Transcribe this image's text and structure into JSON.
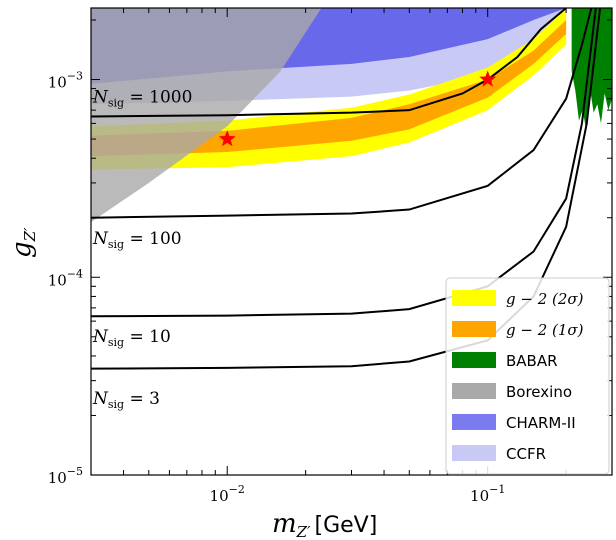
{
  "chart_data": {
    "type": "line",
    "xlabel_symbol": "m",
    "xlabel_sub": "Z′",
    "xlabel_unit": "[GeV]",
    "ylabel_symbol": "g",
    "ylabel_sub": "Z′",
    "x_scale": "log",
    "y_scale": "log",
    "xlim": [
      0.003,
      0.3
    ],
    "ylim": [
      1e-05,
      0.0023
    ],
    "x_ticks": [
      {
        "value": 0.01,
        "base": "10",
        "exp": "−2"
      },
      {
        "value": 0.1,
        "base": "10",
        "exp": "−1"
      }
    ],
    "y_ticks": [
      {
        "value": 1e-05,
        "base": "10",
        "exp": "−5"
      },
      {
        "value": 0.0001,
        "base": "10",
        "exp": "−4"
      },
      {
        "value": 0.001,
        "base": "10",
        "exp": "−3"
      }
    ],
    "contours": [
      {
        "label_main": "N",
        "label_sub": "sig",
        "label_eq": " = 1000",
        "label_at": [
          0.003,
          0.00082
        ],
        "x": [
          0.003,
          0.01,
          0.03,
          0.05,
          0.08,
          0.1,
          0.13,
          0.16,
          0.2
        ],
        "y": [
          0.00065,
          0.00066,
          0.00068,
          0.0007,
          0.00085,
          0.001,
          0.0013,
          0.0018,
          0.0023
        ]
      },
      {
        "label_main": "N",
        "label_sub": "sig",
        "label_eq": " = 100",
        "label_at": [
          0.003,
          0.000158
        ],
        "x": [
          0.003,
          0.01,
          0.03,
          0.05,
          0.1,
          0.15,
          0.2,
          0.23,
          0.25
        ],
        "y": [
          0.0002,
          0.000205,
          0.00021,
          0.00022,
          0.00029,
          0.00044,
          0.0008,
          0.0015,
          0.0023
        ]
      },
      {
        "label_main": "N",
        "label_sub": "sig",
        "label_eq": " = 10",
        "label_at": [
          0.003,
          5.05e-05
        ],
        "x": [
          0.003,
          0.01,
          0.03,
          0.05,
          0.1,
          0.15,
          0.2,
          0.23,
          0.26
        ],
        "y": [
          6.35e-05,
          6.4e-05,
          6.55e-05,
          6.9e-05,
          9e-05,
          0.000135,
          0.00025,
          0.0006,
          0.0023
        ]
      },
      {
        "label_main": "N",
        "label_sub": "sig",
        "label_eq": " = 3",
        "label_at": [
          0.003,
          2.45e-05
        ],
        "x": [
          0.003,
          0.01,
          0.03,
          0.05,
          0.1,
          0.15,
          0.2,
          0.24,
          0.27
        ],
        "y": [
          3.45e-05,
          3.48e-05,
          3.55e-05,
          3.75e-05,
          4.8e-05,
          8e-05,
          0.00018,
          0.0006,
          0.0023
        ]
      }
    ],
    "bands": {
      "g2_2sigma": {
        "x": [
          0.003,
          0.01,
          0.03,
          0.05,
          0.1,
          0.15,
          0.2
        ],
        "upper": [
          0.00058,
          0.00062,
          0.00072,
          0.00084,
          0.00115,
          0.0016,
          0.0023
        ],
        "lower": [
          0.00035,
          0.00036,
          0.00041,
          0.00048,
          0.0007,
          0.00105,
          0.0015
        ]
      },
      "g2_1sigma": {
        "x": [
          0.003,
          0.01,
          0.03,
          0.05,
          0.1,
          0.15,
          0.2
        ],
        "upper": [
          0.00052,
          0.00055,
          0.00064,
          0.00075,
          0.001,
          0.0014,
          0.002
        ],
        "lower": [
          0.00041,
          0.00043,
          0.00049,
          0.00056,
          0.00081,
          0.0012,
          0.0017
        ]
      },
      "charm": {
        "x": [
          0.003,
          0.01,
          0.03,
          0.05,
          0.1,
          0.15,
          0.2,
          0.3
        ],
        "lower": [
          0.00095,
          0.0011,
          0.0012,
          0.0013,
          0.0016,
          0.002,
          0.0023,
          0.0023
        ]
      },
      "ccfr": {
        "x": [
          0.003,
          0.01,
          0.03,
          0.05,
          0.1,
          0.15,
          0.2
        ],
        "lower": [
          0.00075,
          0.00078,
          0.00082,
          0.00088,
          0.00105,
          0.0014,
          0.002
        ]
      },
      "borexino": {
        "x": [
          0.003,
          0.005,
          0.01,
          0.016,
          0.023
        ],
        "diag": [
          0.00019,
          0.0003,
          0.00058,
          0.0011,
          0.0023
        ]
      },
      "babar": {
        "x_range": [
          0.21,
          0.3
        ],
        "lower": [
          0.0011,
          0.00088,
          0.00062,
          0.0007,
          0.00055,
          0.0009,
          0.00068,
          0.00075,
          0.0006,
          0.00085,
          0.0007,
          0.0008
        ]
      }
    },
    "benchmarks": [
      {
        "x": 0.01,
        "y": 0.0005
      },
      {
        "x": 0.1,
        "y": 0.001
      }
    ],
    "legend": {
      "placement": "lower-right",
      "entries": [
        {
          "kind": "math",
          "text": "g − 2 (2σ)",
          "color": "#ffff00"
        },
        {
          "kind": "math",
          "text": "g − 2 (1σ)",
          "color": "#ffa500"
        },
        {
          "kind": "text",
          "text": "BABAR",
          "color": "#008000"
        },
        {
          "kind": "text",
          "text": "Borexino",
          "color": "#a9a9a9"
        },
        {
          "kind": "text",
          "text": "CHARM-II",
          "color": "#7b7bf0"
        },
        {
          "kind": "text",
          "text": "CCFR",
          "color": "#c9c9f5"
        }
      ]
    },
    "colors": {
      "g2_2sigma": "#ffff00",
      "g2_1sigma": "#ffa500",
      "babar": "#008000",
      "borexino": "#a9a9a9",
      "charm": "#5050e8",
      "ccfr": "#c9c9f5",
      "contour": "#000000",
      "benchmark": "#ff0000"
    }
  }
}
